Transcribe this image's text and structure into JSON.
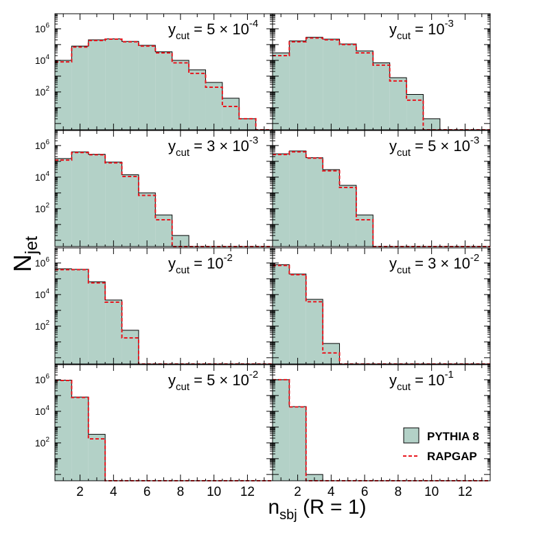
{
  "chart_data": {
    "type": "bar",
    "xlabel": "n",
    "xlabel_sub": "sbj",
    "xlabel_suffix": " (R = 1)",
    "ylabel": "N",
    "ylabel_sub": "jet",
    "x_ticks": [
      2,
      4,
      6,
      8,
      10,
      12
    ],
    "xlim": [
      0.5,
      13.5
    ],
    "yscale": "log",
    "ylim": [
      0.4,
      9000000
    ],
    "y_ticks": [
      {
        "value": 100,
        "base": "10",
        "exp": "2"
      },
      {
        "value": 10000,
        "base": "10",
        "exp": "4"
      },
      {
        "value": 1000000,
        "base": "10",
        "exp": "6"
      }
    ],
    "legend": {
      "position": "bottom-right",
      "entries": [
        {
          "label": "PYTHIA 8",
          "style": "filled",
          "color": "#b3d1c7"
        },
        {
          "label": "RAPGAP",
          "style": "dashed",
          "color": "#e8141c"
        }
      ]
    },
    "colors": {
      "fill": "#b3d1c7",
      "outline": "#000000",
      "dashed": "#e8141c"
    },
    "bins": [
      1,
      2,
      3,
      4,
      5,
      6,
      7,
      8,
      9,
      10,
      11,
      12,
      13
    ],
    "panels": [
      {
        "label_prefix": "y",
        "label_sub": "cut",
        "label_value": " = 5 × 10",
        "label_exp": "-4",
        "series": [
          {
            "name": "PYTHIA 8",
            "values": [
              10000,
              80000,
              200000,
              230000,
              160000,
              90000,
              35000,
              10000,
              2500,
              400,
              40,
              2,
              0
            ]
          },
          {
            "name": "RAPGAP",
            "values": [
              8000,
              70000,
              180000,
              220000,
              150000,
              80000,
              30000,
              7000,
              1500,
              200,
              12,
              2,
              0
            ]
          }
        ]
      },
      {
        "label_prefix": "y",
        "label_sub": "cut",
        "label_value": " = 10",
        "label_exp": "-3",
        "series": [
          {
            "name": "PYTHIA 8",
            "values": [
              30000,
              170000,
              290000,
              220000,
              110000,
              40000,
              7000,
              800,
              70,
              2,
              0,
              0,
              0
            ]
          },
          {
            "name": "RAPGAP",
            "values": [
              20000,
              150000,
              260000,
              200000,
              100000,
              30000,
              5000,
              500,
              30,
              0,
              0,
              0,
              0
            ]
          }
        ]
      },
      {
        "label_prefix": "y",
        "label_sub": "cut",
        "label_value": " = 3 × 10",
        "label_exp": "-3",
        "series": [
          {
            "name": "PYTHIA 8",
            "values": [
              150000,
              400000,
              280000,
              90000,
              14000,
              1000,
              40,
              2,
              0,
              0,
              0,
              0,
              0
            ]
          },
          {
            "name": "RAPGAP",
            "values": [
              120000,
              360000,
              260000,
              80000,
              11000,
              700,
              20,
              0,
              0,
              0,
              0,
              0,
              0
            ]
          }
        ]
      },
      {
        "label_prefix": "y",
        "label_sub": "cut",
        "label_value": " = 5 × 10",
        "label_exp": "-3",
        "series": [
          {
            "name": "PYTHIA 8",
            "values": [
              300000,
              450000,
              170000,
              30000,
              3000,
              40,
              0,
              0,
              0,
              0,
              0,
              0,
              0
            ]
          },
          {
            "name": "RAPGAP",
            "values": [
              270000,
              400000,
              160000,
              25000,
              2200,
              20,
              0,
              0,
              0,
              0,
              0,
              0,
              0
            ]
          }
        ]
      },
      {
        "label_prefix": "y",
        "label_sub": "cut",
        "label_value": " = 10",
        "label_exp": "-2",
        "series": [
          {
            "name": "PYTHIA 8",
            "values": [
              430000,
              400000,
              65000,
              4500,
              55,
              0,
              0,
              0,
              0,
              0,
              0,
              0,
              0
            ]
          },
          {
            "name": "RAPGAP",
            "values": [
              380000,
              380000,
              55000,
              3300,
              18,
              0,
              0,
              0,
              0,
              0,
              0,
              0,
              0
            ]
          }
        ]
      },
      {
        "label_prefix": "y",
        "label_sub": "cut",
        "label_value": " = 3 × 10",
        "label_exp": "-2",
        "series": [
          {
            "name": "PYTHIA 8",
            "values": [
              780000,
              200000,
              5000,
              8,
              0,
              0,
              0,
              0,
              0,
              0,
              0,
              0,
              0
            ]
          },
          {
            "name": "RAPGAP",
            "values": [
              700000,
              180000,
              3500,
              2,
              0,
              0,
              0,
              0,
              0,
              0,
              0,
              0,
              0
            ]
          }
        ]
      },
      {
        "label_prefix": "y",
        "label_sub": "cut",
        "label_value": " = 5 × 10",
        "label_exp": "-2",
        "series": [
          {
            "name": "PYTHIA 8",
            "values": [
              950000,
              80000,
              350,
              0,
              0,
              0,
              0,
              0,
              0,
              0,
              0,
              0,
              0
            ]
          },
          {
            "name": "RAPGAP",
            "values": [
              900000,
              75000,
              180,
              0,
              0,
              0,
              0,
              0,
              0,
              0,
              0,
              0,
              0
            ]
          }
        ]
      },
      {
        "label_prefix": "y",
        "label_sub": "cut",
        "label_value": " = 10",
        "label_exp": "-1",
        "series": [
          {
            "name": "PYTHIA 8",
            "values": [
              1000000,
              20000,
              1,
              0,
              0,
              0,
              0,
              0,
              0,
              0,
              0,
              0,
              0
            ]
          },
          {
            "name": "RAPGAP",
            "values": [
              1000000,
              19000,
              0,
              0,
              0,
              0,
              0,
              0,
              0,
              0,
              0,
              0,
              0
            ]
          }
        ]
      }
    ]
  }
}
